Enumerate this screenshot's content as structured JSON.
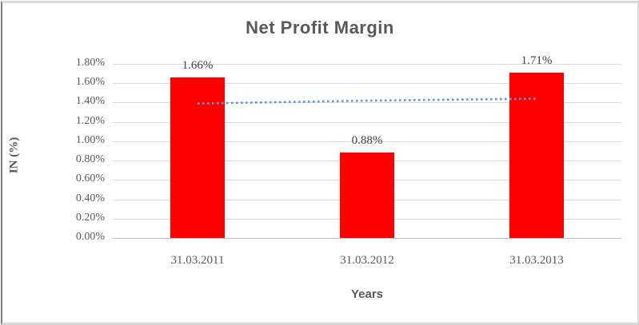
{
  "chart_data": {
    "type": "bar",
    "title": "Net Profit Margin",
    "xlabel": "Years",
    "ylabel": "IN (%)",
    "categories": [
      "31.03.2011",
      "31.03.2012",
      "31.03.2013"
    ],
    "values": [
      1.66,
      0.88,
      1.71
    ],
    "value_labels": [
      "1.66%",
      "0.88%",
      "1.71%"
    ],
    "ylim": [
      0,
      1.8
    ],
    "ytick_step": 0.2,
    "ytick_labels": [
      "0.00%",
      "0.20%",
      "0.40%",
      "0.60%",
      "0.80%",
      "1.00%",
      "1.20%",
      "1.40%",
      "1.60%",
      "1.80%"
    ],
    "grid": true,
    "legend_visible": false,
    "bar_color": "#ff0000",
    "trendline": {
      "type": "linear",
      "style": "dotted",
      "color": "#5b9bd5",
      "values": [
        1.39,
        1.42,
        1.44
      ]
    },
    "gridline_color": "#d9d9d9",
    "axis_line_color": "#bfbfbf",
    "title_color": "#595959",
    "text_color": "#595959",
    "frame_border_color": "#d9d9d9"
  }
}
